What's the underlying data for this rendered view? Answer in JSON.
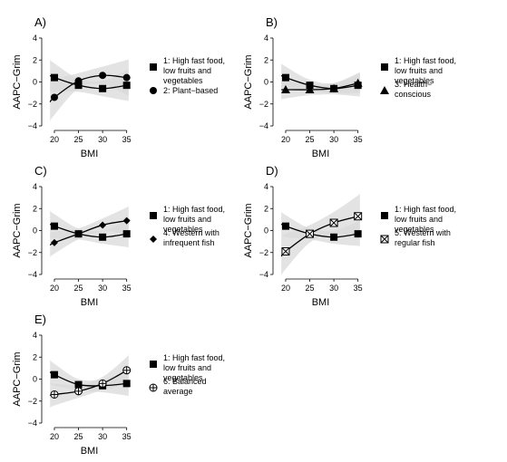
{
  "chart_data": [
    {
      "type": "line",
      "title": "A)",
      "xlabel": "BMI",
      "ylabel": "AAPC−Grim",
      "x": [
        20,
        25,
        30,
        35
      ],
      "xlim": [
        18.5,
        36
      ],
      "ylim": [
        -4,
        4
      ],
      "xticks": [
        "20",
        "25",
        "30",
        "35"
      ],
      "yticks": [
        "−4",
        "−2",
        "0",
        "2",
        "4"
      ],
      "grid": false,
      "legend_position": "right",
      "series": [
        {
          "name": "1: High fast food, low fruits and vegetables",
          "marker": "square",
          "values": [
            0.4,
            -0.3,
            -0.6,
            -0.3
          ],
          "band": [
            1.3,
            0.6,
            0.7,
            1.4
          ]
        },
        {
          "name": "2: Plant−based",
          "marker": "circle",
          "values": [
            -1.4,
            0.1,
            0.6,
            0.4
          ],
          "band": [
            1.6,
            0.7,
            0.8,
            1.6
          ]
        }
      ]
    },
    {
      "type": "line",
      "title": "B)",
      "xlabel": "BMI",
      "ylabel": "AAPC−Grim",
      "x": [
        20,
        25,
        30,
        35
      ],
      "xlim": [
        18.5,
        36
      ],
      "ylim": [
        -4,
        4
      ],
      "xticks": [
        "20",
        "25",
        "30",
        "35"
      ],
      "yticks": [
        "−4",
        "−2",
        "0",
        "2",
        "4"
      ],
      "grid": false,
      "legend_position": "right",
      "series": [
        {
          "name": "1: High fast food, low fruits and vegetables",
          "marker": "square",
          "values": [
            0.4,
            -0.3,
            -0.6,
            -0.3
          ],
          "band": [
            1.0,
            0.5,
            0.5,
            1.0
          ]
        },
        {
          "name": "3: Health−conscious",
          "marker": "triangle",
          "values": [
            -0.7,
            -0.7,
            -0.6,
            -0.1
          ],
          "band": [
            0.8,
            0.5,
            0.5,
            0.9
          ]
        }
      ]
    },
    {
      "type": "line",
      "title": "C)",
      "xlabel": "BMI",
      "ylabel": "AAPC−Grim",
      "x": [
        20,
        25,
        30,
        35
      ],
      "xlim": [
        18.5,
        36
      ],
      "ylim": [
        -4,
        4
      ],
      "xticks": [
        "20",
        "25",
        "30",
        "35"
      ],
      "yticks": [
        "−4",
        "−2",
        "0",
        "2",
        "4"
      ],
      "grid": false,
      "legend_position": "right",
      "series": [
        {
          "name": "1: High fast food, low fruits and vegetables",
          "marker": "square",
          "values": [
            0.4,
            -0.3,
            -0.6,
            -0.3
          ],
          "band": [
            1.1,
            0.5,
            0.6,
            1.2
          ]
        },
        {
          "name": "4: Western with infrequent fish",
          "marker": "diamond",
          "values": [
            -1.1,
            -0.3,
            0.5,
            0.9
          ],
          "band": [
            1.0,
            0.5,
            0.6,
            1.2
          ]
        }
      ]
    },
    {
      "type": "line",
      "title": "D)",
      "xlabel": "BMI",
      "ylabel": "AAPC−Grim",
      "x": [
        20,
        25,
        30,
        35
      ],
      "xlim": [
        18.5,
        36
      ],
      "ylim": [
        -4,
        4
      ],
      "xticks": [
        "20",
        "25",
        "30",
        "35"
      ],
      "yticks": [
        "−4",
        "−2",
        "0",
        "2",
        "4"
      ],
      "grid": false,
      "legend_position": "right",
      "series": [
        {
          "name": "1: High fast food, low fruits and vegetables",
          "marker": "square",
          "values": [
            0.4,
            -0.3,
            -0.6,
            -0.3
          ],
          "band": [
            1.0,
            0.5,
            0.6,
            1.1
          ]
        },
        {
          "name": "5: Western with regular fish",
          "marker": "crossed-square",
          "values": [
            -1.9,
            -0.3,
            0.7,
            1.3
          ],
          "band": [
            1.6,
            0.8,
            1.0,
            1.9
          ]
        }
      ]
    },
    {
      "type": "line",
      "title": "E)",
      "xlabel": "BMI",
      "ylabel": "AAPC−Grim",
      "x": [
        20,
        25,
        30,
        35
      ],
      "xlim": [
        18.5,
        36
      ],
      "ylim": [
        -4,
        4
      ],
      "xticks": [
        "20",
        "25",
        "30",
        "35"
      ],
      "yticks": [
        "−4",
        "−2",
        "0",
        "2",
        "4"
      ],
      "grid": false,
      "legend_position": "right",
      "series": [
        {
          "name": "1: High fast food, low fruits and vegetables",
          "marker": "square",
          "values": [
            0.4,
            -0.5,
            -0.6,
            -0.4
          ],
          "band": [
            1.0,
            0.5,
            0.6,
            1.1
          ]
        },
        {
          "name": "6: Balanced average",
          "marker": "crossed-circle",
          "values": [
            -1.4,
            -1.1,
            -0.4,
            0.8
          ],
          "band": [
            1.0,
            0.6,
            0.6,
            1.2
          ]
        }
      ]
    }
  ],
  "legend_labels": [
    [
      "1: High fast food,",
      "low fruits and",
      "vegetables"
    ],
    [
      "2: Plant−based"
    ],
    [
      "3: Health−",
      "conscious"
    ],
    [
      "4: Western with",
      "infrequent fish"
    ],
    [
      "5: Western with",
      "regular fish"
    ],
    [
      "6: Balanced",
      "average"
    ]
  ],
  "colors": {
    "band": "#d9d9d9",
    "line": "#000000"
  }
}
